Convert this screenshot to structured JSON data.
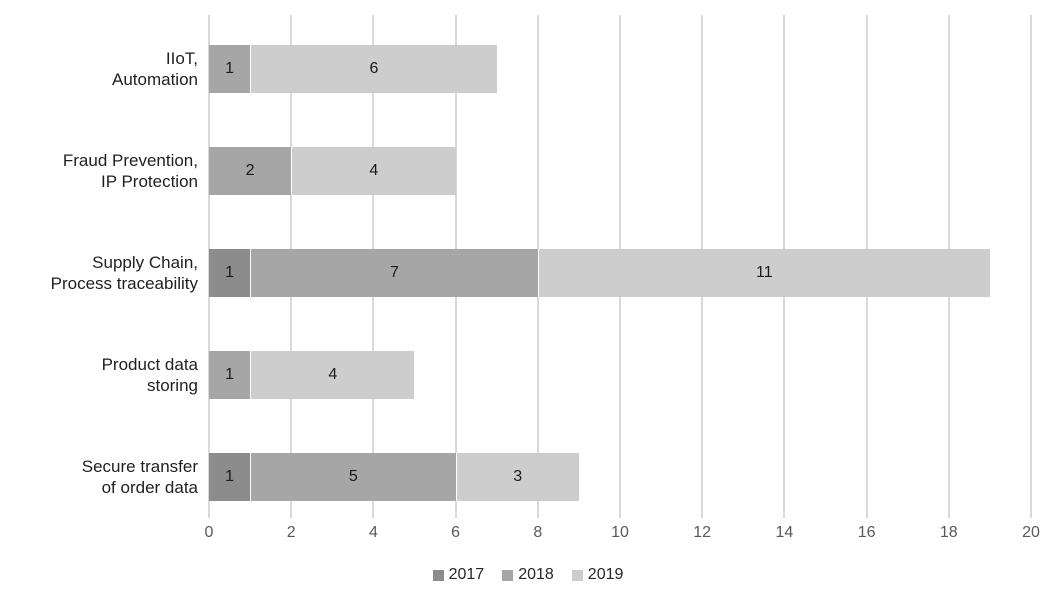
{
  "chart_data": {
    "type": "bar",
    "orientation": "horizontal",
    "stacked": true,
    "title": "",
    "xlabel": "",
    "ylabel": "",
    "xlim": [
      0,
      20
    ],
    "xticks": [
      0,
      2,
      4,
      6,
      8,
      10,
      12,
      14,
      16,
      18,
      20
    ],
    "grid": "vertical",
    "legend_position": "bottom-center",
    "categories": [
      [
        "IIoT,",
        "Automation"
      ],
      [
        "Fraud Prevention,",
        "IP Protection"
      ],
      [
        "Supply Chain,",
        "Process traceability"
      ],
      [
        "Product data",
        "storing"
      ],
      [
        "Secure transfer",
        "of order data"
      ]
    ],
    "series": [
      {
        "name": "2017",
        "color": "#8c8c8c",
        "values": [
          0,
          0,
          1,
          0,
          1
        ]
      },
      {
        "name": "2018",
        "color": "#a6a6a6",
        "values": [
          1,
          2,
          7,
          1,
          5
        ]
      },
      {
        "name": "2019",
        "color": "#cdcdcd",
        "values": [
          6,
          4,
          11,
          4,
          3
        ]
      }
    ],
    "totals": [
      7,
      6,
      19,
      5,
      9
    ],
    "style": {
      "background": "#ffffff",
      "gridline_color": "#d9d9d9",
      "tick_label_color": "#595959",
      "category_label_color": "#1f1f1f",
      "value_label_color": "#1a1a1a",
      "legend_label_color": "#262626"
    }
  }
}
